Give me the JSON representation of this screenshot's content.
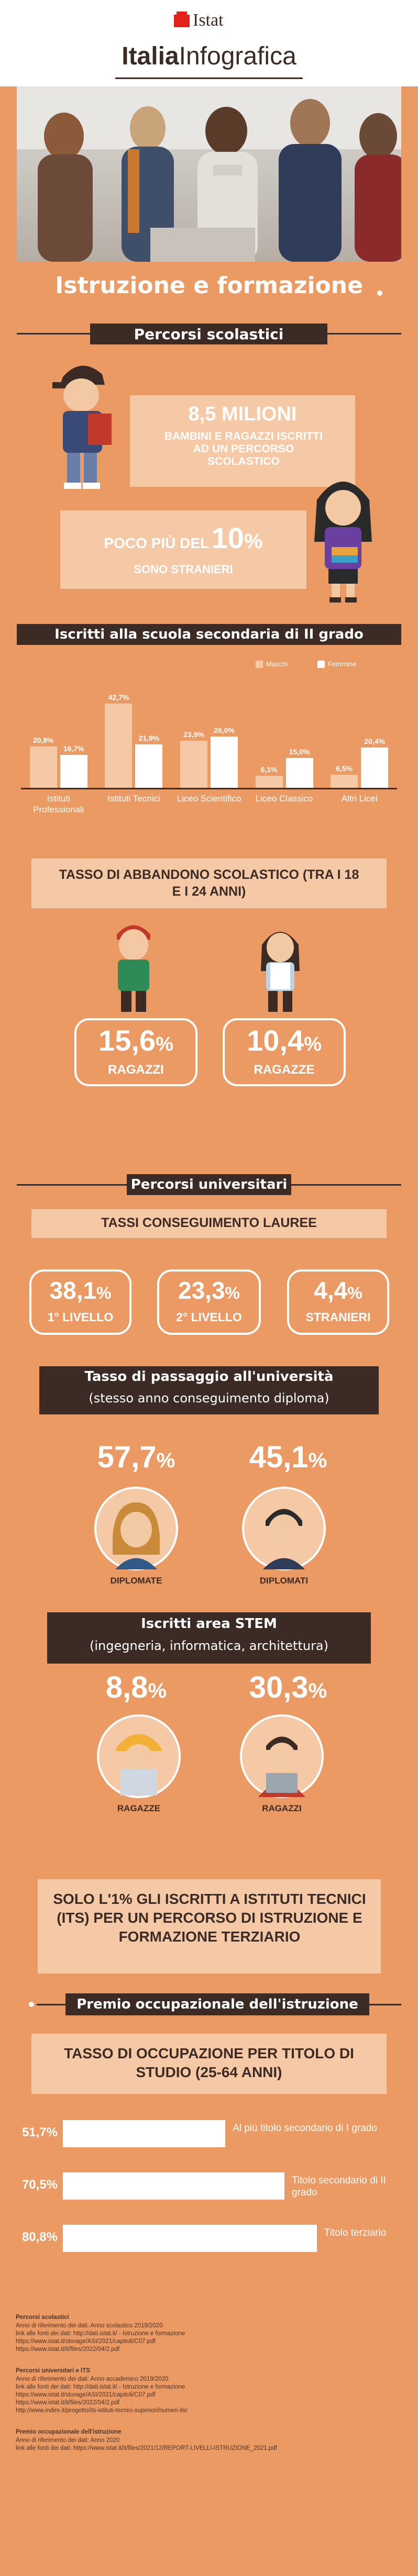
{
  "header": {
    "brand": "Istat",
    "title_a": "Italia",
    "title_b": "Infografica"
  },
  "main_title": "Istruzione e formazione",
  "sections": {
    "percorsi_scolastici": {
      "label": "Percorsi scolastici",
      "stat1_big": "8,5 MILIONI",
      "stat1_text": "BAMBINI E RAGAZZI ISCRITTI AD UN PERCORSO SCOLASTICO",
      "stat2_prefix": "POCO PIÙ DEL",
      "stat2_big": "10",
      "stat2_pct": "%",
      "stat2_text": "SONO STRANIERI"
    },
    "iscritti_secondaria": {
      "label": "Iscritti alla scuola secondaria di II grado",
      "legend_m": "Maschi",
      "legend_f": "Femmine"
    },
    "abbandono": {
      "title": "TASSO DI ABBANDONO SCOLASTICO (TRA I 18 E I 24 ANNI)",
      "boys_value": "15,6",
      "boys_pct": "%",
      "boys_label": "RAGAZZI",
      "girls_value": "10,4",
      "girls_pct": "%",
      "girls_label": "RAGAZZE"
    },
    "universitari": {
      "label": "Percorsi universitari",
      "subtitle": "TASSI CONSEGUIMENTO LAUREE",
      "items": [
        {
          "value": "38,1",
          "pct": "%",
          "label": "1° LIVELLO"
        },
        {
          "value": "23,3",
          "pct": "%",
          "label": "2° LIVELLO"
        },
        {
          "value": "4,4",
          "pct": "%",
          "label": "STRANIERI"
        }
      ]
    },
    "passaggio": {
      "label_line1": "Tasso di passaggio all'università",
      "label_line2": "(stesso anno conseguimento diploma)",
      "girls_value": "57,7",
      "girls_pct": "%",
      "girls_label": "DIPLOMATE",
      "boys_value": "45,1",
      "boys_pct": "%",
      "boys_label": "DIPLOMATI"
    },
    "stem": {
      "label_line1": "Iscritti area STEM",
      "label_line2": "(ingegneria, informatica, architettura)",
      "girls_value": "8,8",
      "girls_pct": "%",
      "girls_label": "RAGAZZE",
      "boys_value": "30,3",
      "boys_pct": "%",
      "boys_label": "RAGAZZI"
    },
    "its": {
      "text": "SOLO L'1% GLI ISCRITTI A ISTITUTI TECNICI (ITS) PER UN PERCORSO DI ISTRUZIONE E FORMAZIONE TERZIARIO"
    },
    "premio": {
      "label": "Premio occupazionale dell'istruzione",
      "subtitle": "TASSO DI OCCUPAZIONE PER TITOLO DI STUDIO (25-64 ANNI)"
    }
  },
  "chart_data": [
    {
      "type": "bar",
      "title": "Iscritti alla scuola secondaria di II grado",
      "categories": [
        "Istituti Professionali",
        "Istituti Tecnici",
        "Liceo Scientifico",
        "Liceo Classico",
        "Altri Licei"
      ],
      "series": [
        {
          "name": "Maschi",
          "values": [
            20.8,
            42.7,
            23.9,
            6.1,
            6.5
          ],
          "labels": [
            "20,8%",
            "42,7%",
            "23,9%",
            "6,1%",
            "6,5%"
          ],
          "color": "#F6C9A6"
        },
        {
          "name": "Femmine",
          "values": [
            16.7,
            21.9,
            26.0,
            15.0,
            20.4
          ],
          "labels": [
            "16,7%",
            "21,9%",
            "26,0%",
            "15,0%",
            "20,4%"
          ],
          "color": "#FFFFFF"
        }
      ],
      "ylim": [
        0,
        45
      ]
    },
    {
      "type": "bar",
      "orientation": "horizontal",
      "title": "TASSO DI OCCUPAZIONE PER TITOLO DI STUDIO (25-64 ANNI)",
      "categories": [
        "Al più titolo secondario di I grado",
        "Titolo secondario di II grado",
        "Titolo terziario"
      ],
      "values": [
        51.7,
        70.5,
        80.8
      ],
      "labels": [
        "51,7%",
        "70,5%",
        "80,8%"
      ],
      "xlim": [
        0,
        100
      ]
    }
  ],
  "sources": [
    {
      "title": "Percorsi scolastici",
      "lines": [
        "Anno di riferimento dei dati: Anno scolastico 2019/2020",
        "link alle fonti dei dati: http://dati.istat.it/ - Istruzione e formazione",
        "https://www.istat.it/storage/ASI/2021/capitoli/C07.pdf",
        "https://www.istat.it/it/files/2022/04/2.pdf"
      ]
    },
    {
      "title": "Percorsi universitari e ITS",
      "lines": [
        "Anno di riferimento dei dati: Anno accademico 2019/2020",
        "link alle fonti dei dati: http://dati.istat.it/ - Istruzione e formazione",
        "https://www.istat.it/storage/ASI/2021/capitoli/C07.pdf",
        "https://www.istat.it/it/files/2022/04/2.pdf",
        "http://www.indire.it/progetto/its-istituti-tecnici-superiori/numeri-its/"
      ]
    },
    {
      "title": "Premio occupazionale dell'istruzione",
      "lines": [
        "Anno di riferimento dei dati: Anno 2020",
        "link alle fonti dei dati: https://www.istat.it/it/files/2021/12/REPORT-LIVELLI-ISTRUZIONE_2021.pdf"
      ]
    }
  ],
  "colors": {
    "background": "#EC9A63",
    "dark": "#3B2B24",
    "light": "#F6C9A6",
    "white": "#FFFFFF"
  }
}
